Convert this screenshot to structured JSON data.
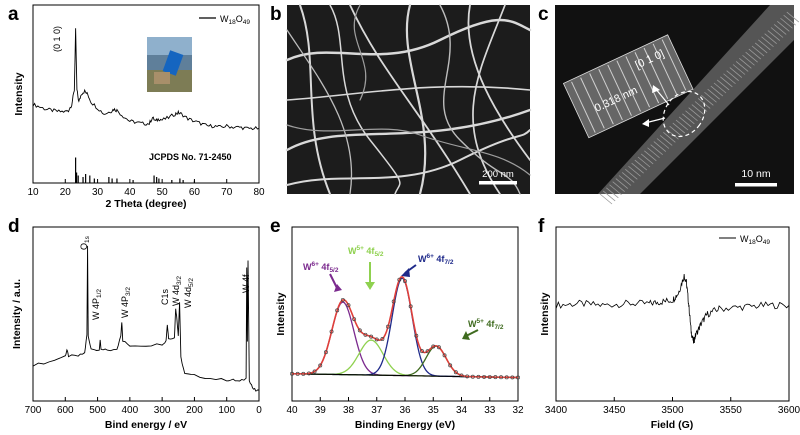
{
  "chart_data": [
    {
      "panel": "a",
      "type": "line",
      "xlabel": "2 Theta (degree)",
      "ylabel": "Intensity",
      "xlim": [
        10,
        80
      ],
      "xticks": [
        10,
        20,
        30,
        40,
        50,
        60,
        70,
        80
      ],
      "legend": "W18O49",
      "peak_label": "(0 1 0)",
      "reference_label": "JCPDS No. 71-2450",
      "series": [
        {
          "name": "W18O49",
          "x": [
            10,
            12,
            14,
            16,
            18,
            20,
            21,
            22,
            22.8,
            23.2,
            23.6,
            24.2,
            25,
            26,
            27,
            28,
            30,
            32,
            34,
            35,
            36,
            38,
            40,
            42,
            44,
            46,
            47,
            48,
            49,
            50,
            52,
            54,
            55,
            56,
            58,
            60,
            62,
            64,
            66,
            68,
            70,
            72,
            74,
            76,
            78,
            80
          ],
          "y": [
            0.38,
            0.36,
            0.34,
            0.33,
            0.32,
            0.32,
            0.33,
            0.38,
            0.5,
            1.0,
            0.5,
            0.4,
            0.47,
            0.49,
            0.46,
            0.4,
            0.35,
            0.3,
            0.32,
            0.34,
            0.33,
            0.28,
            0.24,
            0.23,
            0.22,
            0.22,
            0.27,
            0.24,
            0.26,
            0.25,
            0.27,
            0.3,
            0.31,
            0.3,
            0.26,
            0.24,
            0.22,
            0.2,
            0.2,
            0.19,
            0.2,
            0.19,
            0.19,
            0.18,
            0.18,
            0.18
          ]
        }
      ],
      "reference_sticks": {
        "x": [
          23.2,
          23.5,
          24.0,
          25.5,
          26.3,
          27.6,
          29.0,
          33.5,
          34.5,
          36.0,
          41.0,
          47.5,
          48.3,
          49.0,
          53.0,
          55.5,
          56.5,
          60.0
        ],
        "h": [
          0.85,
          0.35,
          0.25,
          0.2,
          0.3,
          0.25,
          0.15,
          0.2,
          0.15,
          0.15,
          0.1,
          0.25,
          0.2,
          0.15,
          0.1,
          0.15,
          0.1,
          0.08
        ]
      }
    },
    {
      "panel": "b",
      "type": "image",
      "scale_bar": "200 nm"
    },
    {
      "panel": "c",
      "type": "image",
      "scale_bar": "10 nm",
      "spacing_label": "0.318 nm",
      "plane_label": "[0 1 0]"
    },
    {
      "panel": "d",
      "type": "line",
      "xlabel": "Bind energy / eV",
      "ylabel": "Intensity / a.u.",
      "xlim": [
        700,
        0
      ],
      "xticks": [
        700,
        600,
        500,
        400,
        300,
        200,
        100,
        0
      ],
      "peak_labels": [
        {
          "text": "O1s",
          "x": 531
        },
        {
          "text": "W 4P1/2",
          "x": 492
        },
        {
          "text": "W 4P3/2",
          "x": 425
        },
        {
          "text": "C1s",
          "x": 284
        },
        {
          "text": "W 4d3/2",
          "x": 258
        },
        {
          "text": "W 4d5/2",
          "x": 246
        },
        {
          "text": "W 4f",
          "x": 35
        }
      ],
      "series": [
        {
          "name": "survey",
          "x": [
            700,
            650,
            600,
            595,
            590,
            560,
            540,
            533,
            531,
            529,
            520,
            495,
            492,
            489,
            470,
            440,
            428,
            425,
            422,
            400,
            350,
            300,
            288,
            284,
            280,
            262,
            258,
            254,
            250,
            246,
            242,
            230,
            200,
            150,
            100,
            80,
            60,
            40,
            38,
            36,
            34,
            30,
            20,
            10,
            0
          ],
          "y": [
            0.2,
            0.22,
            0.26,
            0.3,
            0.26,
            0.26,
            0.28,
            0.4,
            1.0,
            0.4,
            0.3,
            0.3,
            0.36,
            0.3,
            0.3,
            0.3,
            0.4,
            0.49,
            0.36,
            0.33,
            0.33,
            0.34,
            0.36,
            0.47,
            0.38,
            0.38,
            0.58,
            0.5,
            0.4,
            0.62,
            0.25,
            0.14,
            0.13,
            0.11,
            0.1,
            0.1,
            0.09,
            0.11,
            0.85,
            0.35,
            0.9,
            0.1,
            0.05,
            0.03,
            0.03
          ]
        }
      ]
    },
    {
      "panel": "e",
      "type": "line",
      "xlabel": "Binding Energy (eV)",
      "ylabel": "Intensity",
      "xlim": [
        40,
        32
      ],
      "xticks": [
        40,
        39,
        38,
        37,
        36,
        35,
        34,
        33,
        32
      ],
      "annotations": [
        {
          "text": "W",
          "sup": "6+",
          "mid": " 4f",
          "sub": "5/2",
          "color": "#7b2a8e"
        },
        {
          "text": "W",
          "sup": "5+",
          "mid": " 4f",
          "sub": "5/2",
          "color": "#8fd14f"
        },
        {
          "text": "W",
          "sup": "6+",
          "mid": " 4f",
          "sub": "7/2",
          "color": "#1f2a8a"
        },
        {
          "text": "W",
          "sup": "5+",
          "mid": " 4f",
          "sub": "7/2",
          "color": "#3f6b1f"
        }
      ],
      "components": [
        {
          "name": "W6+ 4f5/2",
          "center": 38.2,
          "height": 0.58,
          "width": 0.55,
          "color": "#7b2a8e"
        },
        {
          "name": "W5+ 4f5/2",
          "center": 37.2,
          "height": 0.28,
          "width": 0.6,
          "color": "#8fd14f"
        },
        {
          "name": "W6+ 4f7/2",
          "center": 36.1,
          "height": 0.78,
          "width": 0.5,
          "color": "#1f2a8a"
        },
        {
          "name": "W5+ 4f7/2",
          "center": 34.9,
          "height": 0.24,
          "width": 0.5,
          "color": "#3f6b1f"
        }
      ],
      "background": {
        "start": 0.05,
        "end": 0.02
      },
      "envelope_color": "#e0403a"
    },
    {
      "panel": "f",
      "type": "line",
      "xlabel": "Field (G)",
      "ylabel": "Intensity",
      "xlim": [
        3400,
        3600
      ],
      "xticks": [
        3400,
        3450,
        3500,
        3550,
        3600
      ],
      "legend": "W18O49",
      "series": [
        {
          "name": "W18O49",
          "x": [
            3400,
            3420,
            3440,
            3460,
            3480,
            3490,
            3500,
            3505,
            3510,
            3512,
            3514,
            3516,
            3518,
            3520,
            3525,
            3530,
            3540,
            3560,
            3580,
            3600
          ],
          "y": [
            0.55,
            0.56,
            0.55,
            0.56,
            0.56,
            0.57,
            0.58,
            0.62,
            0.72,
            0.68,
            0.55,
            0.4,
            0.34,
            0.38,
            0.45,
            0.5,
            0.53,
            0.54,
            0.55,
            0.55
          ]
        }
      ]
    }
  ],
  "letters": [
    "a",
    "b",
    "c",
    "d",
    "e",
    "f"
  ],
  "text": {
    "a_legend_W": "W",
    "a_legend_sub": "18",
    "a_legend_O": "O",
    "a_legend_sub2": "49",
    "d_O_main": "O",
    "d_O_sub": "1s",
    "d_W4P12_main": "W 4P",
    "d_W4P12_sub": "1/2",
    "d_W4P32_main": "W 4P",
    "d_W4P32_sub": "3/2",
    "d_C1s": "C1s",
    "d_W4d32_main": "W 4d",
    "d_W4d32_sub": "3/2",
    "d_W4d52_main": "W 4d",
    "d_W4d52_sub": "5/2",
    "d_W4f": "W 4f"
  }
}
